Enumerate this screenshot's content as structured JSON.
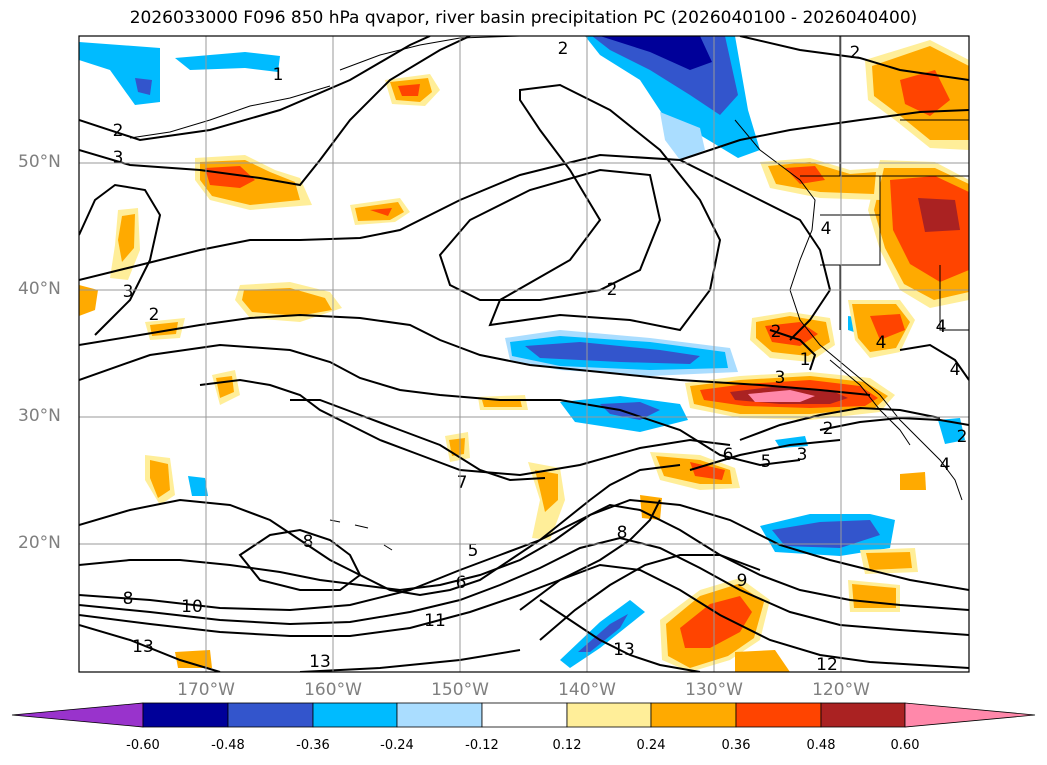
{
  "title": "2026033000 F096 850 hPa qvapor, river basin precipitation PC (2026040100 - 2026040400)",
  "lat_labels": [
    "50°N",
    "40°N",
    "30°N",
    "20°N"
  ],
  "lon_labels": [
    "170°W",
    "160°W",
    "150°W",
    "140°W",
    "130°W",
    "120°W"
  ],
  "contour_labels": [
    "2",
    "2",
    "1",
    "3",
    "2",
    "4",
    "3",
    "2",
    "2",
    "3",
    "4",
    "4",
    "4",
    "1",
    "2",
    "2",
    "3",
    "5",
    "6",
    "7",
    "5",
    "6",
    "8",
    "8",
    "9",
    "10",
    "11",
    "8",
    "13",
    "13",
    "13",
    "12",
    "2",
    "4"
  ],
  "colorbar": {
    "labels": [
      "-0.60",
      "-0.48",
      "-0.36",
      "-0.24",
      "-0.12",
      "0.12",
      "0.24",
      "0.36",
      "0.48",
      "0.60"
    ],
    "colors": {
      "under": "#9933cc",
      "bins": [
        "#000099",
        "#3355cc",
        "#00bbff",
        "#aaddff",
        "#ffffff",
        "#ffee99",
        "#ffaa00",
        "#ff4400",
        "#aa2222"
      ],
      "over": "#ff88aa"
    }
  },
  "colors": {
    "frame": "#000000",
    "grid": "#999999",
    "contour": "#000000",
    "axis_label": "#7f7f7f"
  }
}
